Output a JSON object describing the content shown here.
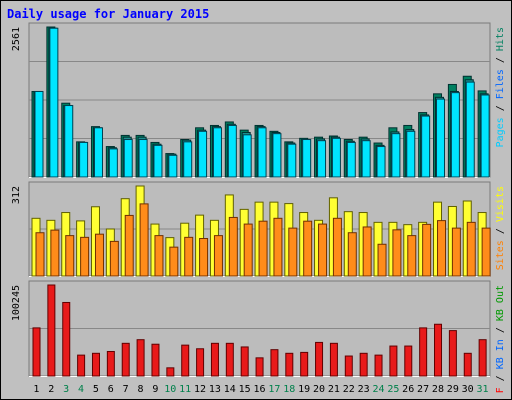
{
  "title": "Daily usage for January 2015",
  "colors": {
    "background": "#c0c0c0",
    "plot_background": "#bcbcbc",
    "title": "#0000ff",
    "weekday_label": "#000000",
    "weekend_label": "#00804b",
    "gridline": "#888888",
    "pages": "#00ccff",
    "files": "#0066ff",
    "hits": "#008060",
    "visits": "#ffff00",
    "sites": "#ff8000",
    "kb_in": "#0066ff",
    "kb_out": "#009900",
    "kb_f": "#ff0000",
    "bar_dark": "#006060",
    "bar_light_pages": "#1a8f8f",
    "bar_pages": "#00e5ff",
    "bar_visits": "#ffff33",
    "bar_sites": "#ff8c1a",
    "bar_kb": "#e81a1a",
    "separator": "#ffffff"
  },
  "chart_data": [
    {
      "type": "bar",
      "name": "hits-files-pages",
      "ymax_label": "2561",
      "ylim": [
        0,
        2561
      ],
      "legend": [
        {
          "text": "Pages",
          "color": "#00ccff"
        },
        {
          "text": " / ",
          "color": "#000000"
        },
        {
          "text": "Files",
          "color": "#0066ff"
        },
        {
          "text": " / ",
          "color": "#000000"
        },
        {
          "text": "Hits",
          "color": "#008060"
        }
      ],
      "series": [
        {
          "name": "Hits",
          "values": [
            1460,
            2561,
            1260,
            600,
            860,
            520,
            710,
            710,
            590,
            400,
            640,
            840,
            880,
            940,
            800,
            880,
            780,
            600,
            660,
            680,
            700,
            640,
            680,
            580,
            840,
            880,
            1100,
            1420,
            1580,
            1720,
            1470
          ]
        },
        {
          "name": "Files",
          "values": [
            1460,
            2540,
            1220,
            590,
            840,
            500,
            680,
            680,
            560,
            390,
            630,
            800,
            860,
            900,
            760,
            860,
            760,
            580,
            640,
            650,
            680,
            610,
            650,
            540,
            770,
            810,
            1060,
            1360,
            1460,
            1660,
            1420
          ]
        },
        {
          "name": "Pages",
          "values": [
            1460,
            2540,
            1220,
            590,
            840,
            480,
            640,
            640,
            540,
            370,
            600,
            780,
            840,
            880,
            720,
            840,
            740,
            560,
            640,
            620,
            660,
            590,
            620,
            520,
            740,
            780,
            1040,
            1330,
            1440,
            1620,
            1400
          ]
        }
      ]
    },
    {
      "type": "bar",
      "name": "visits-sites",
      "ymax_label": "312",
      "ylim": [
        0,
        312
      ],
      "legend": [
        {
          "text": "Sites",
          "color": "#ff8000"
        },
        {
          "text": " / ",
          "color": "#000000"
        },
        {
          "text": "Visits",
          "color": "#ffff00"
        }
      ],
      "series": [
        {
          "name": "Visits",
          "values": [
            200,
            193,
            220,
            191,
            240,
            163,
            268,
            312,
            180,
            133,
            183,
            211,
            193,
            281,
            231,
            256,
            256,
            251,
            220,
            193,
            271,
            223,
            220,
            186,
            186,
            178,
            186,
            256,
            241,
            260,
            220
          ]
        },
        {
          "name": "Sites",
          "values": [
            150,
            159,
            140,
            134,
            145,
            120,
            210,
            250,
            140,
            100,
            134,
            130,
            140,
            203,
            180,
            190,
            200,
            166,
            190,
            180,
            200,
            150,
            170,
            110,
            160,
            140,
            179,
            192,
            166,
            186,
            166
          ]
        }
      ]
    },
    {
      "type": "bar",
      "name": "kbytes",
      "ymax_label": "100245",
      "ylim": [
        0,
        100245
      ],
      "legend": [
        {
          "text": "KB F",
          "color": "#ff0000"
        },
        {
          "text": " / ",
          "color": "#000000"
        },
        {
          "text": "KB In",
          "color": "#0066ff"
        },
        {
          "text": " / ",
          "color": "#000000"
        },
        {
          "text": "KB Out",
          "color": "#009900"
        }
      ],
      "series": [
        {
          "name": "KB F",
          "values": [
            53000,
            100245,
            81000,
            23000,
            25000,
            27000,
            36000,
            40000,
            35000,
            9000,
            34000,
            30000,
            36000,
            36000,
            32000,
            20000,
            29000,
            25000,
            26000,
            37000,
            36000,
            22000,
            25000,
            23000,
            33000,
            33000,
            53000,
            57000,
            50000,
            25000,
            40000
          ]
        }
      ]
    }
  ],
  "days": [
    {
      "label": "1",
      "weekend": false
    },
    {
      "label": "2",
      "weekend": false
    },
    {
      "label": "3",
      "weekend": true
    },
    {
      "label": "4",
      "weekend": true
    },
    {
      "label": "5",
      "weekend": false
    },
    {
      "label": "6",
      "weekend": false
    },
    {
      "label": "7",
      "weekend": false
    },
    {
      "label": "8",
      "weekend": false
    },
    {
      "label": "9",
      "weekend": false
    },
    {
      "label": "10",
      "weekend": true
    },
    {
      "label": "11",
      "weekend": true
    },
    {
      "label": "12",
      "weekend": false
    },
    {
      "label": "13",
      "weekend": false
    },
    {
      "label": "14",
      "weekend": false
    },
    {
      "label": "15",
      "weekend": false
    },
    {
      "label": "16",
      "weekend": false
    },
    {
      "label": "17",
      "weekend": true
    },
    {
      "label": "18",
      "weekend": true
    },
    {
      "label": "19",
      "weekend": false
    },
    {
      "label": "20",
      "weekend": false
    },
    {
      "label": "21",
      "weekend": false
    },
    {
      "label": "22",
      "weekend": false
    },
    {
      "label": "23",
      "weekend": false
    },
    {
      "label": "24",
      "weekend": true
    },
    {
      "label": "25",
      "weekend": true
    },
    {
      "label": "26",
      "weekend": false
    },
    {
      "label": "27",
      "weekend": false
    },
    {
      "label": "28",
      "weekend": false
    },
    {
      "label": "29",
      "weekend": false
    },
    {
      "label": "30",
      "weekend": false
    },
    {
      "label": "31",
      "weekend": true
    }
  ]
}
